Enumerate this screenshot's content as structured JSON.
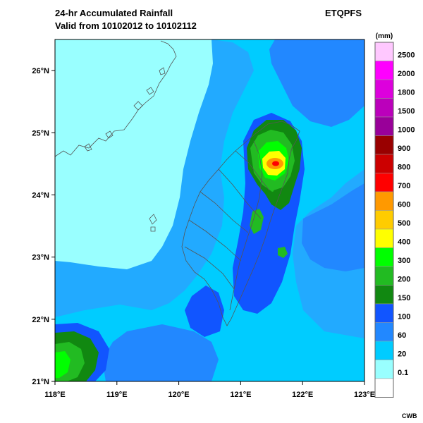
{
  "header": {
    "title_line1": "24-hr Accumulated Rainfall",
    "title_line2": "Valid from 10102012 to 10102112",
    "product": "ETQPFS"
  },
  "footer": {
    "credit": "CWB"
  },
  "map": {
    "lat_labels": [
      "26°N",
      "25°N",
      "24°N",
      "23°N",
      "22°N",
      "21°N"
    ],
    "lon_labels": [
      "118°E",
      "119°E",
      "120°E",
      "121°E",
      "122°E",
      "123°E"
    ],
    "lat_range": [
      21,
      26.5
    ],
    "lon_range": [
      118,
      123
    ]
  },
  "legend": {
    "unit": "(mm)",
    "levels": [
      {
        "label": "2500",
        "color": "#ffc8ff"
      },
      {
        "label": "2000",
        "color": "#ff00ff"
      },
      {
        "label": "1800",
        "color": "#dd00dd"
      },
      {
        "label": "1500",
        "color": "#bb00bb"
      },
      {
        "label": "1000",
        "color": "#990099"
      },
      {
        "label": "900",
        "color": "#990000"
      },
      {
        "label": "800",
        "color": "#cc0000"
      },
      {
        "label": "700",
        "color": "#ff0000"
      },
      {
        "label": "600",
        "color": "#ff9900"
      },
      {
        "label": "500",
        "color": "#ffcc00"
      },
      {
        "label": "400",
        "color": "#ffff00"
      },
      {
        "label": "300",
        "color": "#00ff00"
      },
      {
        "label": "200",
        "color": "#22bb22"
      },
      {
        "label": "150",
        "color": "#118811"
      },
      {
        "label": "100",
        "color": "#1155ff"
      },
      {
        "label": "60",
        "color": "#2288ff"
      },
      {
        "label": "20",
        "color": "#00ccff"
      },
      {
        "label": "0.1",
        "color": "#99ffff"
      },
      {
        "label": "",
        "color": "#ffffff"
      }
    ]
  },
  "colors": {
    "ocean_background": "#22aaff",
    "light_cyan": "#99ffff",
    "cyan": "#00ccff",
    "blue": "#1155ff",
    "medium_blue": "#2288ff",
    "dark_green": "#118811",
    "green": "#22bb22",
    "bright_green": "#00ff00",
    "yellow": "#ffff00",
    "orange": "#ff9900",
    "red": "#ff0000",
    "outline": "#555555"
  }
}
